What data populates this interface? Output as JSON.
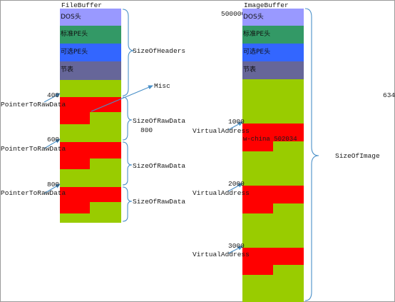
{
  "colors": {
    "dos": "#9999ff",
    "pe": "#339966",
    "optional_pe": "#3366ff",
    "section_table": "#666699",
    "lime": "#99cc00",
    "red": "#ff0000",
    "arrow": "#4a90c8"
  },
  "file_buffer": {
    "title": "FileBuffer",
    "dos_label": "DOS头",
    "pe_label": "标准PE头",
    "optional_label": "可选PE头",
    "section_table_label": "节表",
    "size_of_headers": "SizeOfHeaders",
    "misc": "Misc",
    "offset_400": "400",
    "offset_600": "600",
    "offset_800": "800",
    "pointer_label": "PointerToRawData",
    "raw_size_label": "SizeOfRawData",
    "raw_size_value": "800"
  },
  "image_buffer": {
    "title": "ImageBuffer",
    "base": "500000",
    "dos_label": "DOS头",
    "pe_label": "标准PE头",
    "optional_label": "可选PE头",
    "section_table_label": "节表",
    "offset_1000": "1000",
    "offset_2000": "2000",
    "offset_3000": "3000",
    "va_label": "VirtualAddress",
    "inline_text": "w-china 502034",
    "size_of_image": "SizeOfImage",
    "right_number": "634"
  }
}
